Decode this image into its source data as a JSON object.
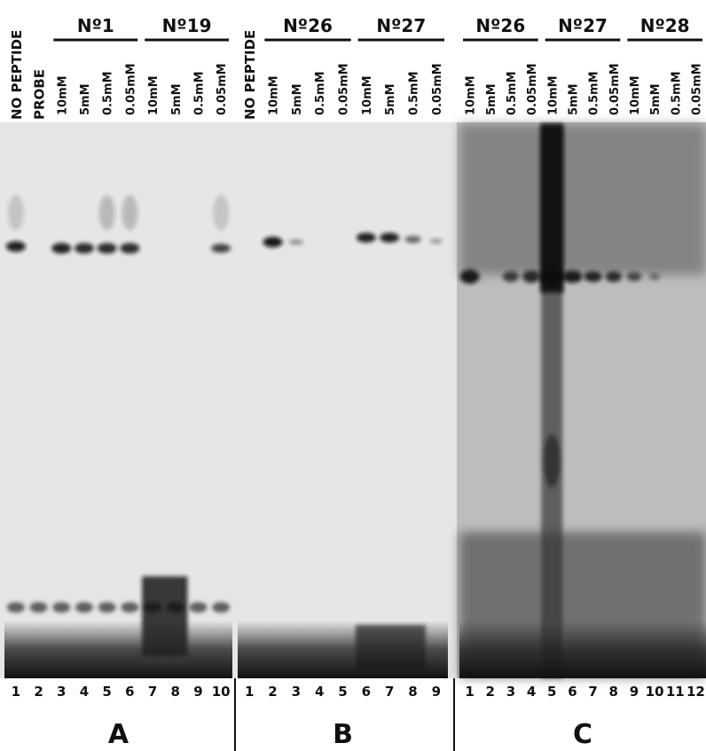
{
  "panels": [
    {
      "letter": "A",
      "lane_numbers": [
        "1",
        "2",
        "3",
        "4",
        "5",
        "6",
        "7",
        "8",
        "9",
        "10"
      ],
      "headers": [
        {
          "label": "NO PEPTIDE"
        },
        {
          "label": "PROBE"
        },
        {
          "group": "Nº1",
          "lanes": [
            "10mM",
            "5mM",
            "0.5mM",
            "0.05mM"
          ]
        },
        {
          "group": "Nº19",
          "lanes": [
            "10mM",
            "5mM",
            "0.5mM",
            "0.05mM"
          ]
        }
      ]
    },
    {
      "letter": "B",
      "lane_numbers": [
        "1",
        "2",
        "3",
        "4",
        "5",
        "6",
        "7",
        "8",
        "9"
      ],
      "headers": [
        {
          "label": "NO PEPTIDE"
        },
        {
          "group": "Nº26",
          "lanes": [
            "10mM",
            "5mM",
            "0.5mM",
            "0.05mM"
          ]
        },
        {
          "group": "Nº27",
          "lanes": [
            "10mM",
            "5mM",
            "0.5mM",
            "0.05mM"
          ]
        }
      ]
    },
    {
      "letter": "C",
      "lane_numbers": [
        "1",
        "2",
        "3",
        "4",
        "5",
        "6",
        "7",
        "8",
        "9",
        "10",
        "11",
        "12"
      ],
      "headers": [
        {
          "group": "Nº26",
          "lanes": [
            "10mM",
            "5mM",
            "0.5mM",
            "0.05mM"
          ]
        },
        {
          "group": "Nº27",
          "lanes": [
            "10mM",
            "5mM",
            "0.5mM",
            "0.05mM"
          ]
        },
        {
          "group": "Nº28",
          "lanes": [
            "10mM",
            "5mM",
            "0.5mM",
            "0.05mM"
          ]
        }
      ]
    }
  ]
}
